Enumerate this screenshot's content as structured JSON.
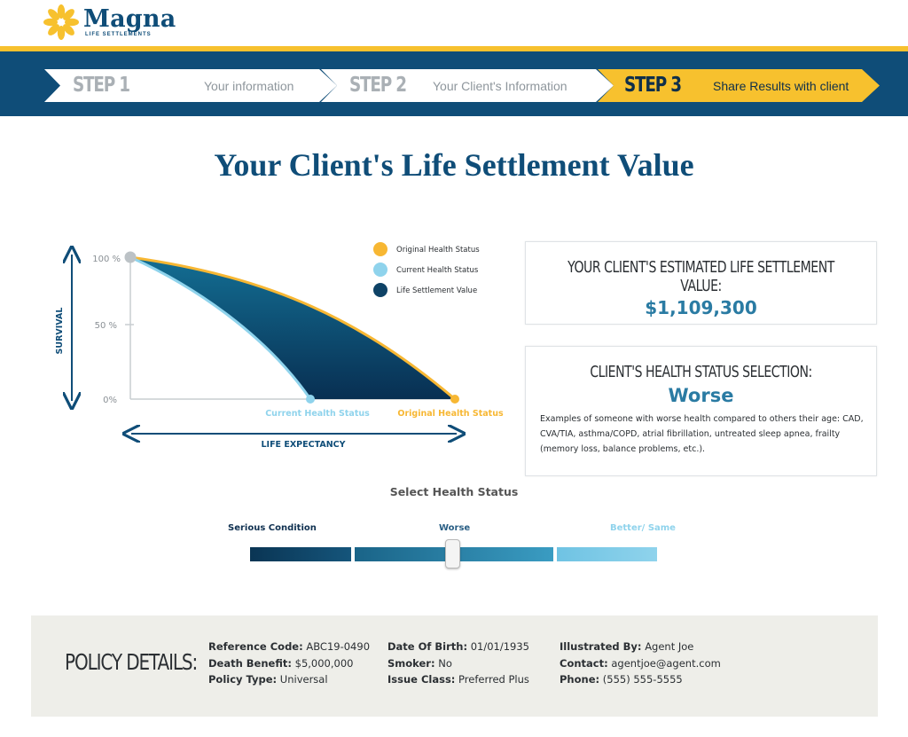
{
  "brand": {
    "name": "Magna",
    "tagline": "LIFE SETTLEMENTS",
    "colors": {
      "navy": "#0f4d78",
      "gold": "#f7c12e",
      "light_blue": "#8fd3ec",
      "teal": "#2a7ba3"
    }
  },
  "steps": [
    {
      "number": "STEP 1",
      "label": "Your information",
      "active": false
    },
    {
      "number": "STEP 2",
      "label": "Your Client's Information",
      "active": false
    },
    {
      "number": "STEP 3",
      "label": "Share Results with client",
      "active": true
    }
  ],
  "page_title": "Your Client's Life Settlement Value",
  "chart": {
    "y_axis_label": "SURVIVAL",
    "x_axis_label": "LIFE EXPECTANCY",
    "y_ticks": [
      "100 %",
      "50 %",
      "0%"
    ],
    "x_markers": [
      "Current Health Status",
      "Original Health Status"
    ],
    "legend": [
      {
        "label": "Original Health Status",
        "color": "#f7b733"
      },
      {
        "label": "Current Health Status",
        "color": "#8fd3ec"
      },
      {
        "label": "Life Settlement Value",
        "color": "#0e4266"
      }
    ]
  },
  "value_card": {
    "heading": "YOUR CLIENT'S ESTIMATED LIFE SETTLEMENT VALUE:",
    "amount": "$1,109,300"
  },
  "status_card": {
    "heading": "CLIENT'S HEALTH STATUS SELECTION:",
    "selection": "Worse",
    "description": "Examples of someone with worse health compared to others their age: CAD, CVA/TIA, asthma/COPD, atrial fibrillation, untreated sleep apnea, frailty (memory loss, balance problems, etc.)."
  },
  "slider": {
    "title": "Select Health Status",
    "labels": [
      "Serious Condition",
      "Worse",
      "Better/ Same"
    ],
    "selected": "Worse"
  },
  "policy": {
    "title": "POLICY DETAILS:",
    "columns": [
      [
        {
          "key": "Reference Code:",
          "value": "ABC19-0490"
        },
        {
          "key": "Death Benefit:",
          "value": "$5,000,000"
        },
        {
          "key": "Policy Type:",
          "value": "Universal"
        }
      ],
      [
        {
          "key": "Date Of Birth:",
          "value": "01/01/1935"
        },
        {
          "key": "Smoker:",
          "value": "No"
        },
        {
          "key": "Issue Class:",
          "value": "Preferred Plus"
        }
      ],
      [
        {
          "key": "Illustrated By:",
          "value": "Agent Joe"
        },
        {
          "key": "Contact:",
          "value": "agentjoe@agent.com"
        },
        {
          "key": "Phone:",
          "value": "(555) 555-5555"
        }
      ]
    ]
  }
}
